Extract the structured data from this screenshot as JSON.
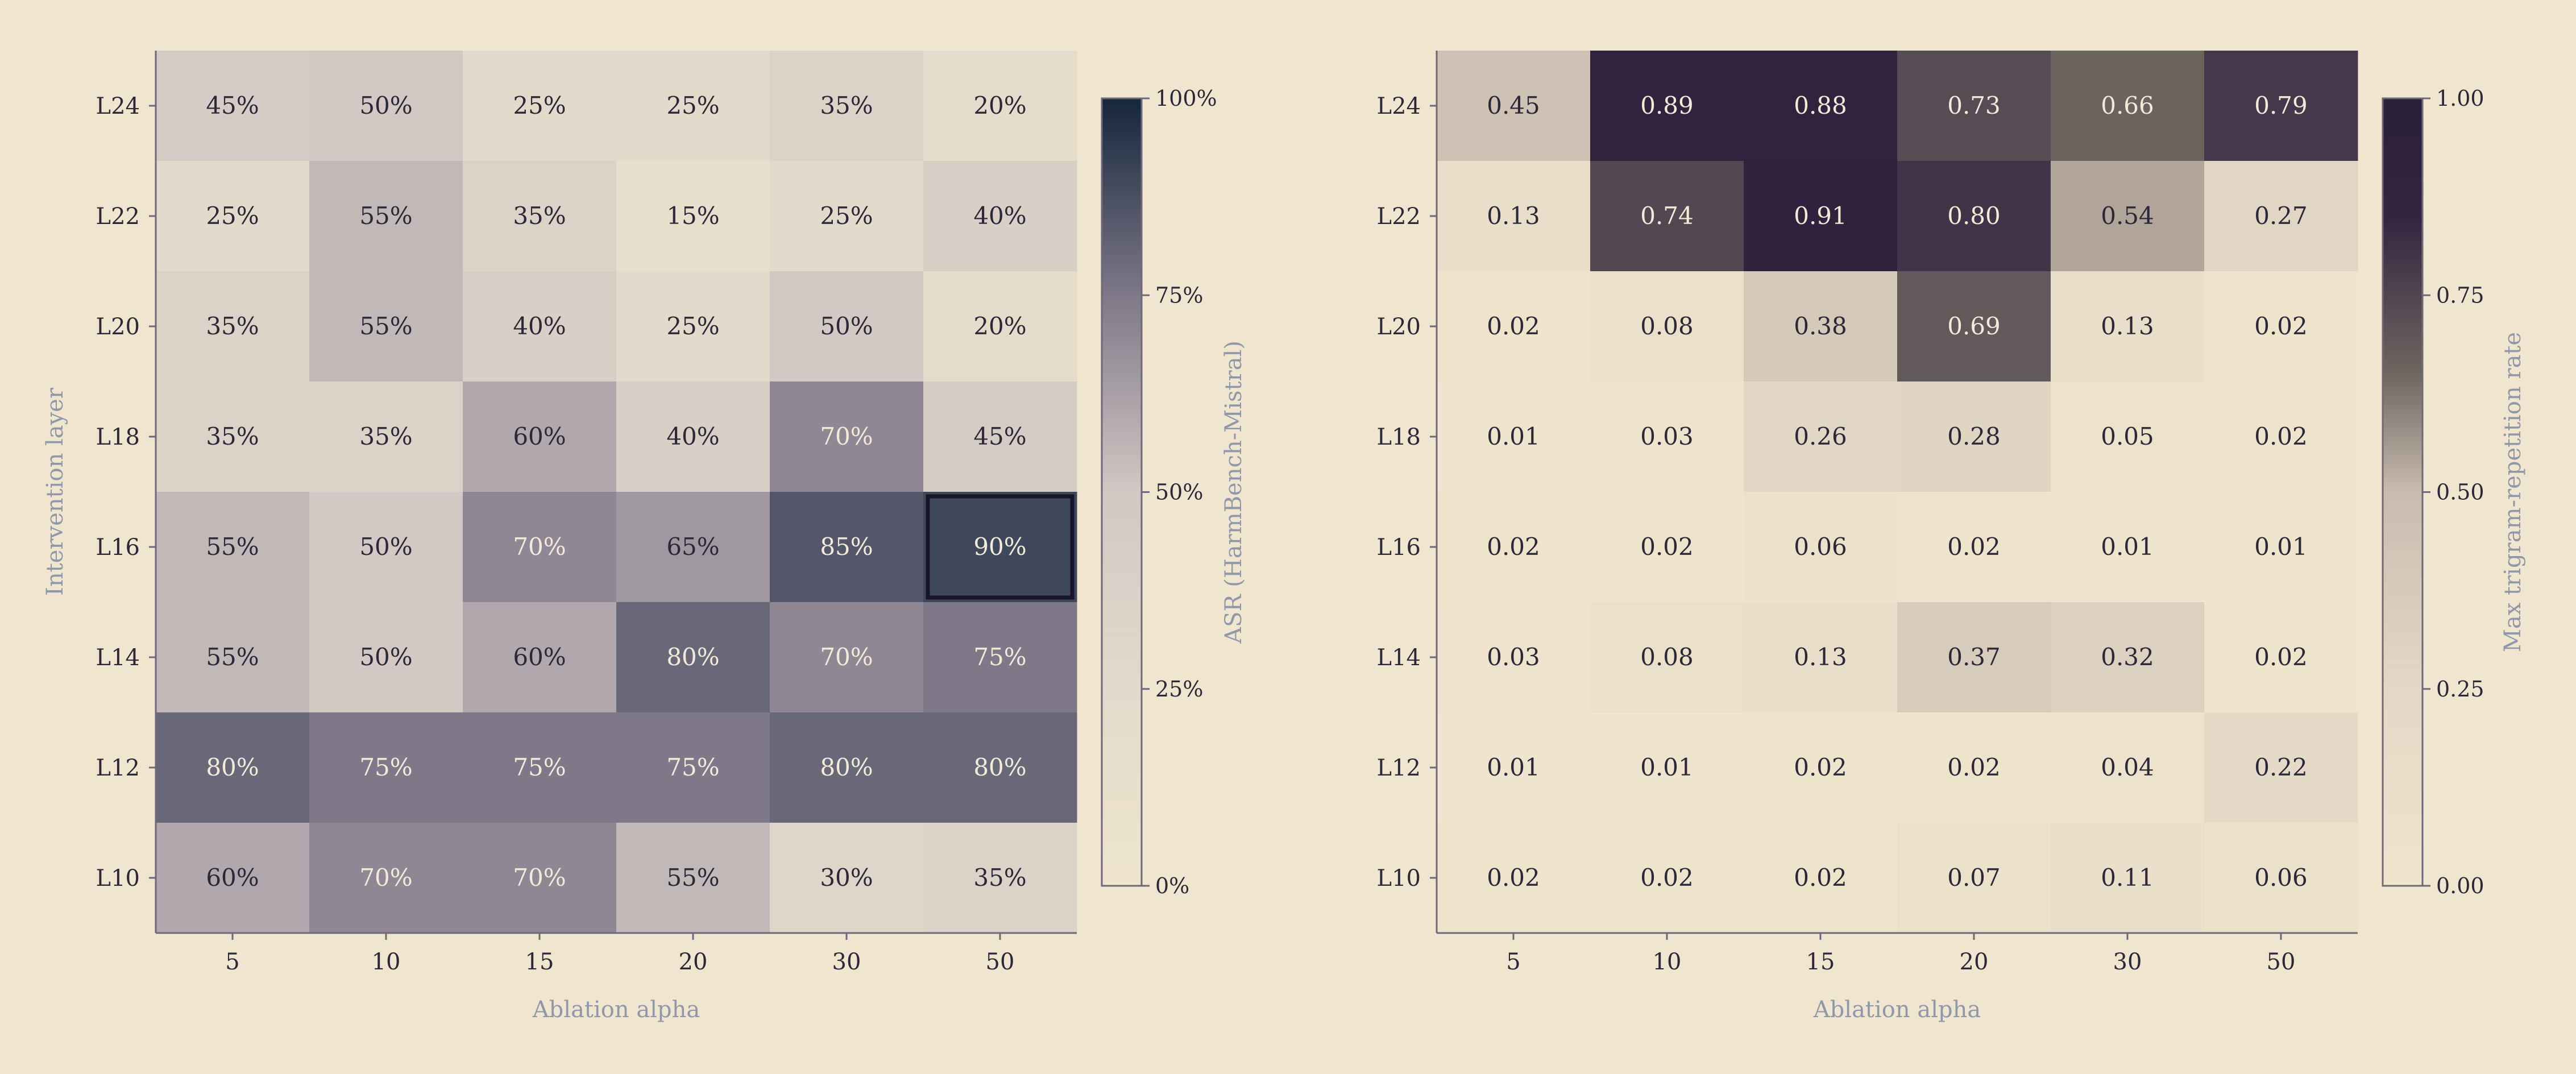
{
  "chart_data": [
    {
      "type": "heatmap",
      "title": "",
      "xlabel": "Ablation alpha",
      "ylabel": "Intervention layer",
      "x": [
        "5",
        "10",
        "15",
        "20",
        "30",
        "50"
      ],
      "y": [
        "L24",
        "L22",
        "L20",
        "L18",
        "L16",
        "L14",
        "L12",
        "L10"
      ],
      "values": [
        [
          45,
          50,
          25,
          25,
          35,
          20
        ],
        [
          25,
          55,
          35,
          15,
          25,
          40
        ],
        [
          35,
          55,
          40,
          25,
          50,
          20
        ],
        [
          35,
          35,
          60,
          40,
          70,
          45
        ],
        [
          55,
          50,
          70,
          65,
          85,
          90
        ],
        [
          55,
          50,
          60,
          80,
          70,
          75
        ],
        [
          80,
          75,
          75,
          75,
          80,
          80
        ],
        [
          60,
          70,
          70,
          55,
          30,
          35
        ]
      ],
      "cell_labels": [
        [
          "45%",
          "50%",
          "25%",
          "25%",
          "35%",
          "20%"
        ],
        [
          "25%",
          "55%",
          "35%",
          "15%",
          "25%",
          "40%"
        ],
        [
          "35%",
          "55%",
          "40%",
          "25%",
          "50%",
          "20%"
        ],
        [
          "35%",
          "35%",
          "60%",
          "40%",
          "70%",
          "45%"
        ],
        [
          "55%",
          "50%",
          "70%",
          "65%",
          "85%",
          "90%"
        ],
        [
          "55%",
          "50%",
          "60%",
          "80%",
          "70%",
          "75%"
        ],
        [
          "80%",
          "75%",
          "75%",
          "75%",
          "80%",
          "80%"
        ],
        [
          "60%",
          "70%",
          "70%",
          "55%",
          "30%",
          "35%"
        ]
      ],
      "highlight_cell": {
        "row": 4,
        "col": 5
      },
      "colorbar": {
        "label": "ASR (HarmBench-Mistral)",
        "range": [
          0,
          100
        ],
        "ticks": [
          0,
          25,
          50,
          75,
          100
        ],
        "tick_labels": [
          "0%",
          "25%",
          "50%",
          "75%",
          "100%"
        ],
        "scale_nodes": [
          0,
          25,
          50,
          75,
          100
        ],
        "colors": [
          "#efe5cd",
          "#e2dacb",
          "#d2c8c4",
          "#7e7888",
          "#15263b"
        ]
      },
      "label_light_threshold": 70
    },
    {
      "type": "heatmap",
      "title": "",
      "xlabel": "Ablation alpha",
      "ylabel": "",
      "x": [
        "5",
        "10",
        "15",
        "20",
        "30",
        "50"
      ],
      "y": [
        "L24",
        "L22",
        "L20",
        "L18",
        "L16",
        "L14",
        "L12",
        "L10"
      ],
      "values": [
        [
          0.45,
          0.89,
          0.88,
          0.73,
          0.66,
          0.79
        ],
        [
          0.13,
          0.74,
          0.91,
          0.8,
          0.54,
          0.27
        ],
        [
          0.02,
          0.08,
          0.38,
          0.69,
          0.13,
          0.02
        ],
        [
          0.01,
          0.03,
          0.26,
          0.28,
          0.05,
          0.02
        ],
        [
          0.02,
          0.02,
          0.06,
          0.02,
          0.01,
          0.01
        ],
        [
          0.03,
          0.08,
          0.13,
          0.37,
          0.32,
          0.02
        ],
        [
          0.01,
          0.01,
          0.02,
          0.02,
          0.04,
          0.22
        ],
        [
          0.02,
          0.02,
          0.02,
          0.07,
          0.11,
          0.06
        ]
      ],
      "cell_labels": [
        [
          "0.45",
          "0.89",
          "0.88",
          "0.73",
          "0.66",
          "0.79"
        ],
        [
          "0.13",
          "0.74",
          "0.91",
          "0.80",
          "0.54",
          "0.27"
        ],
        [
          "0.02",
          "0.08",
          "0.38",
          "0.69",
          "0.13",
          "0.02"
        ],
        [
          "0.01",
          "0.03",
          "0.26",
          "0.28",
          "0.05",
          "0.02"
        ],
        [
          "0.02",
          "0.02",
          "0.06",
          "0.02",
          "0.01",
          "0.01"
        ],
        [
          "0.03",
          "0.08",
          "0.13",
          "0.37",
          "0.32",
          "0.02"
        ],
        [
          "0.01",
          "0.01",
          "0.02",
          "0.02",
          "0.04",
          "0.22"
        ],
        [
          "0.02",
          "0.02",
          "0.02",
          "0.07",
          "0.11",
          "0.06"
        ]
      ],
      "colorbar": {
        "label": "Max trigram-repetition rate",
        "range": [
          0,
          1
        ],
        "ticks": [
          0,
          0.25,
          0.5,
          0.75,
          1
        ],
        "tick_labels": [
          "0.00",
          "0.25",
          "0.50",
          "0.75",
          "1.00"
        ],
        "scale_nodes": [
          0,
          0.25,
          0.5,
          0.65,
          0.85,
          1
        ],
        "colors": [
          "#efe5cd",
          "#e3d8c6",
          "#c9bcaf",
          "#6e6660",
          "#332440",
          "#2a2038"
        ]
      },
      "label_light_threshold": 0.6
    }
  ]
}
